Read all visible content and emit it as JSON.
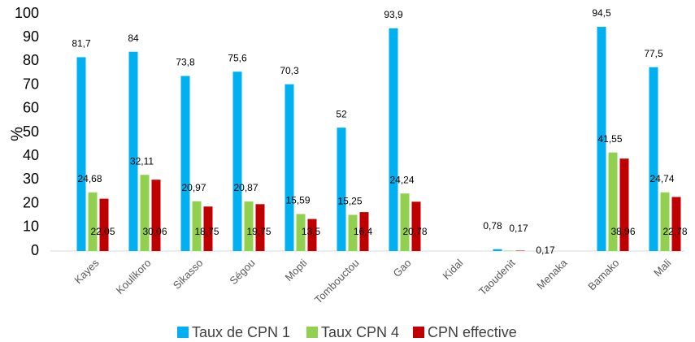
{
  "chart_data": {
    "type": "bar",
    "y_label": "%",
    "categories": [
      "Kayes",
      "Koulikoro",
      "Sikasso",
      "Ségou",
      "Mopti",
      "Tombouctou",
      "Gao",
      "Kidal",
      "Taoudenit",
      "Menaka",
      "Bamako",
      "Mali"
    ],
    "series": [
      {
        "name": "Taux de CPN 1",
        "color": "#00b0f0",
        "values": [
          81.7,
          84,
          73.8,
          75.6,
          70.3,
          52,
          93.9,
          null,
          0.78,
          null,
          94.5,
          77.5
        ],
        "value_labels": [
          "81,7",
          "84",
          "73,8",
          "75,6",
          "70,3",
          "52",
          "93,9",
          null,
          "0,78",
          null,
          "94,5",
          "77,5"
        ]
      },
      {
        "name": "Taux CPN 4",
        "color": "#92d050",
        "values": [
          24.68,
          32.11,
          20.97,
          20.87,
          15.59,
          15.25,
          24.24,
          null,
          0.17,
          null,
          41.55,
          24.74
        ],
        "value_labels": [
          "24,68",
          "32,11",
          "20,97",
          "20,87",
          "15,59",
          "15,25",
          "24,24",
          null,
          "0,17",
          null,
          "41,55",
          "24,74"
        ]
      },
      {
        "name": "CPN effective",
        "color": "#c00000",
        "values": [
          22.05,
          30.06,
          18.75,
          19.75,
          13.5,
          16.4,
          20.78,
          null,
          0.17,
          null,
          38.96,
          22.78
        ],
        "value_labels": [
          "22,05",
          "30,06",
          "18,75",
          "19,75",
          "13,5",
          "16,4",
          "20,78",
          null,
          "0,17",
          null,
          "38,96",
          "22,78"
        ]
      }
    ],
    "ylim": [
      0,
      100
    ],
    "yticks": [
      0,
      10,
      20,
      30,
      40,
      50,
      60,
      70,
      80,
      90,
      100
    ],
    "grid": false
  }
}
